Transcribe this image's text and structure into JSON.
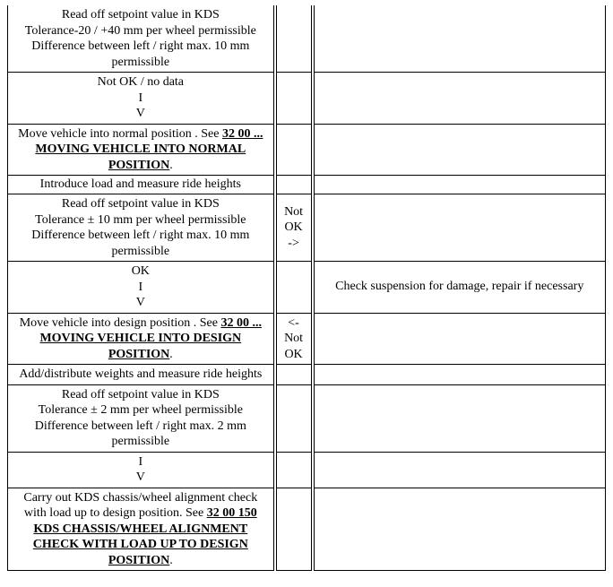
{
  "rows": {
    "r1_c1_l1": "Read off setpoint value in KDS",
    "r1_c1_l2": "Tolerance-20 / +40 mm per wheel permissible",
    "r1_c1_l3": "Difference between left / right max. 10 mm permissible",
    "r2_c1_l1": "Not OK / no data",
    "r2_c1_l2": "I",
    "r2_c1_l3": "V",
    "r3_c1_pre": "Move vehicle into normal position . See ",
    "r3_c1_link": "32 00 ... MOVING VEHICLE INTO NORMAL POSITION",
    "r3_c1_post": ".",
    "r4_c1": "Introduce load and measure ride heights",
    "r5_c1_l1": "Read off setpoint value in KDS",
    "r5_c1_l2": "Tolerance ± 10 mm per wheel permissible",
    "r5_c1_l3": "Difference between left / right max. 10 mm permissible",
    "r5_c2_l1": "Not",
    "r5_c2_l2": "OK",
    "r5_c2_l3": "->",
    "r6_c1_l1": "OK",
    "r6_c1_l2": "I",
    "r6_c1_l3": "V",
    "r6_c3": "Check suspension for damage, repair if necessary",
    "r7_c1_pre": "Move vehicle into design position . See ",
    "r7_c1_link": "32 00 ... MOVING VEHICLE INTO DESIGN POSITION",
    "r7_c1_post": ".",
    "r7_c2_l1": "<-",
    "r7_c2_l2": "Not",
    "r7_c2_l3": "OK",
    "r8_c1": "Add/distribute weights and measure ride heights",
    "r9_c1_l1": "Read off setpoint value in KDS",
    "r9_c1_l2": "Tolerance ± 2 mm per wheel permissible",
    "r9_c1_l3": "Difference between left / right max. 2 mm permissible",
    "r10_c1_l1": "I",
    "r10_c1_l2": "V",
    "r11_c1_pre": "Carry out KDS chassis/wheel alignment check with load up to design position. See ",
    "r11_c1_link": "32 00 150 KDS CHASSIS/WHEEL ALIGNMENT CHECK WITH LOAD UP TO DESIGN POSITION",
    "r11_c1_post": "."
  }
}
